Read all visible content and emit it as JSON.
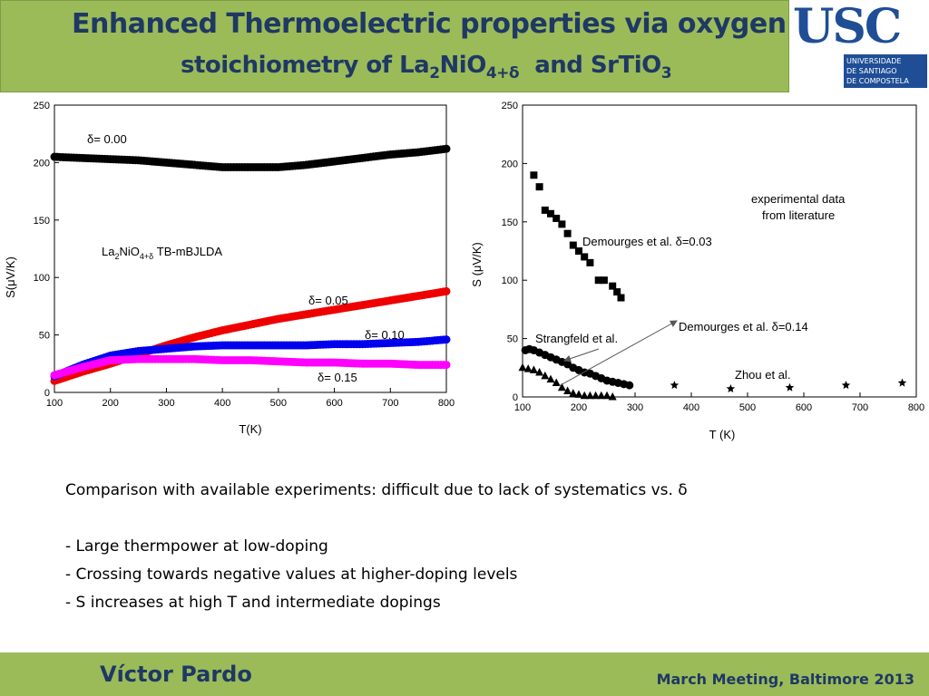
{
  "header": {
    "title_line1": "Enhanced Thermoelectric properties via oxygen",
    "title_line2_prefix": "stoichiometry of La",
    "title_line2_sub1": "2",
    "title_line2_mid": "NiO",
    "title_line2_sub2": "4+δ",
    "title_line2_suffix": "  and SrTiO",
    "title_line2_sub3": "3"
  },
  "logo": {
    "text": "USC",
    "sub_lines": [
      "UNIVERSIDADE",
      "DE SANTIAGO",
      "DE COMPOSTELA"
    ],
    "color": "#1f4e96"
  },
  "chart_data": [
    {
      "type": "scatter",
      "xlabel": "T(K)",
      "ylabel": "S(μV/K)",
      "xlim": [
        100,
        800
      ],
      "ylim": [
        0,
        250
      ],
      "xticks": [
        100,
        200,
        300,
        400,
        500,
        600,
        700,
        800
      ],
      "yticks": [
        0,
        50,
        100,
        150,
        200,
        250
      ],
      "grid": false,
      "annotation": {
        "text_main": "La",
        "text_sub1": "2",
        "text_mid": "NiO",
        "text_sub2": "4+δ",
        "text_suffix": " TB-mBJLDA"
      },
      "series": [
        {
          "name": "δ= 0.00",
          "color": "#000000",
          "x": [
            100,
            150,
            200,
            250,
            300,
            350,
            400,
            450,
            500,
            550,
            600,
            650,
            700,
            750,
            800
          ],
          "y": [
            205,
            204,
            203,
            202,
            200,
            198,
            196,
            196,
            196,
            198,
            201,
            204,
            207,
            209,
            212
          ]
        },
        {
          "name": "δ= 0.05",
          "color": "#ee0000",
          "x": [
            100,
            150,
            200,
            250,
            300,
            350,
            400,
            450,
            500,
            550,
            600,
            650,
            700,
            750,
            800
          ],
          "y": [
            10,
            18,
            25,
            33,
            41,
            48,
            54,
            59,
            64,
            68,
            72,
            76,
            80,
            84,
            88
          ]
        },
        {
          "name": "δ= 0.10",
          "color": "#0000ee",
          "x": [
            100,
            150,
            200,
            250,
            300,
            350,
            400,
            450,
            500,
            550,
            600,
            650,
            700,
            750,
            800
          ],
          "y": [
            14,
            24,
            32,
            36,
            38,
            40,
            41,
            41,
            41,
            41,
            42,
            42,
            43,
            44,
            46
          ]
        },
        {
          "name": "δ= 0.15",
          "color": "#ff00ff",
          "x": [
            100,
            150,
            200,
            250,
            300,
            350,
            400,
            450,
            500,
            550,
            600,
            650,
            700,
            750,
            800
          ],
          "y": [
            15,
            22,
            28,
            29,
            29,
            29,
            28,
            28,
            27,
            26,
            26,
            25,
            25,
            24,
            24
          ]
        }
      ]
    },
    {
      "type": "scatter",
      "xlabel": "T (K)",
      "ylabel": "S (μV/K)",
      "xlim": [
        100,
        800
      ],
      "ylim": [
        0,
        250
      ],
      "xticks": [
        100,
        200,
        300,
        400,
        500,
        600,
        700,
        800
      ],
      "yticks": [
        0,
        50,
        100,
        150,
        200,
        250
      ],
      "grid": false,
      "annotation_lines": [
        "experimental data",
        "from literature"
      ],
      "series": [
        {
          "name": "Demourges et al. δ=0.03",
          "marker": "square",
          "x": [
            120,
            130,
            140,
            150,
            160,
            170,
            180,
            190,
            200,
            210,
            220,
            235,
            245,
            260,
            268,
            275
          ],
          "y": [
            190,
            180,
            160,
            157,
            153,
            148,
            140,
            130,
            125,
            120,
            115,
            100,
            100,
            95,
            90,
            85
          ]
        },
        {
          "name": "Strangfeld et al.",
          "marker": "circle",
          "x": [
            105,
            112,
            120,
            130,
            140,
            150,
            160,
            170,
            180,
            190,
            200,
            210,
            220,
            230,
            240,
            250,
            260,
            270,
            280,
            290
          ],
          "y": [
            40,
            41,
            40,
            38,
            36,
            34,
            32,
            30,
            28,
            25,
            23,
            21,
            20,
            18,
            16,
            14,
            13,
            12,
            11,
            10
          ]
        },
        {
          "name": "Demourges et al. δ=0.14",
          "marker": "triangle",
          "x": [
            100,
            110,
            120,
            130,
            140,
            150,
            160,
            170,
            180,
            190,
            200,
            210,
            220,
            230,
            240,
            250,
            260
          ],
          "y": [
            25,
            24,
            23,
            21,
            18,
            15,
            12,
            8,
            5,
            3,
            2,
            1,
            1,
            1,
            1,
            1,
            0
          ]
        },
        {
          "name": "Zhou et al.",
          "marker": "star",
          "x": [
            370,
            470,
            575,
            675,
            775
          ],
          "y": [
            10,
            7,
            8,
            10,
            12
          ]
        }
      ]
    }
  ],
  "body": {
    "line1": "Comparison with available experiments: difficult due to lack of systematics vs. δ",
    "bullets": [
      "- Large thermpower at low-doping",
      "- Crossing towards negative values at higher-doping levels",
      "- S increases at high T and intermediate dopings"
    ]
  },
  "footer": {
    "author": "Víctor Pardo",
    "event": "March Meeting, Baltimore 2013"
  },
  "colors": {
    "green": "#9bbb59",
    "navy": "#1f3864"
  }
}
